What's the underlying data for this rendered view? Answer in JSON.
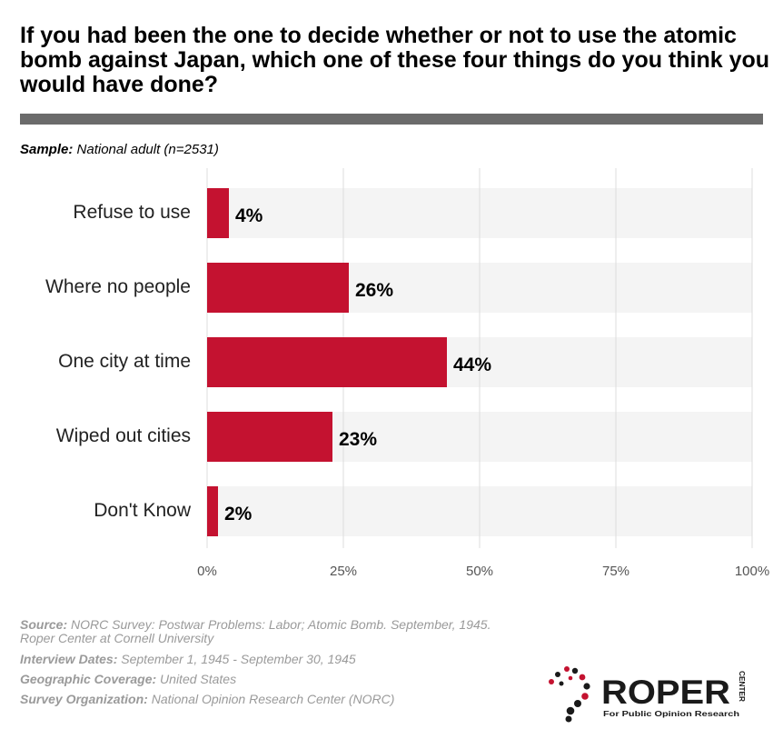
{
  "title": "If you had been the one to decide whether or not to use the atomic bomb against Japan, which one of these four things do you think you would have done?",
  "sample": {
    "label": "Sample:",
    "value": "National adult (n=2531)"
  },
  "chart_data": {
    "type": "bar",
    "orientation": "horizontal",
    "categories": [
      "Refuse to use",
      "Where no people",
      "One city at time",
      "Wiped out cities",
      "Don't Know"
    ],
    "values": [
      4,
      26,
      44,
      23,
      2
    ],
    "value_labels": [
      "4%",
      "26%",
      "44%",
      "23%",
      "2%"
    ],
    "xlim": [
      0,
      100
    ],
    "xticks": [
      "0%",
      "25%",
      "50%",
      "75%",
      "100%"
    ],
    "grid": true,
    "bar_color": "#c41230",
    "track_color": "#f4f4f4"
  },
  "footer": {
    "source_label": "Source:",
    "source_line1": "NORC Survey: Postwar Problems: Labor; Atomic Bomb. September, 1945.",
    "source_line2": "Roper Center at Cornell University",
    "dates_label": "Interview Dates:",
    "dates_value": "September 1, 1945 - September 30, 1945",
    "geo_label": "Geographic Coverage:",
    "geo_value": "United States",
    "org_label": "Survey Organization:",
    "org_value": "National Opinion Research Center (NORC)"
  },
  "logo": {
    "wordmark": "ROPER",
    "side_text": "CENTER",
    "tagline": "For Public Opinion Research"
  }
}
